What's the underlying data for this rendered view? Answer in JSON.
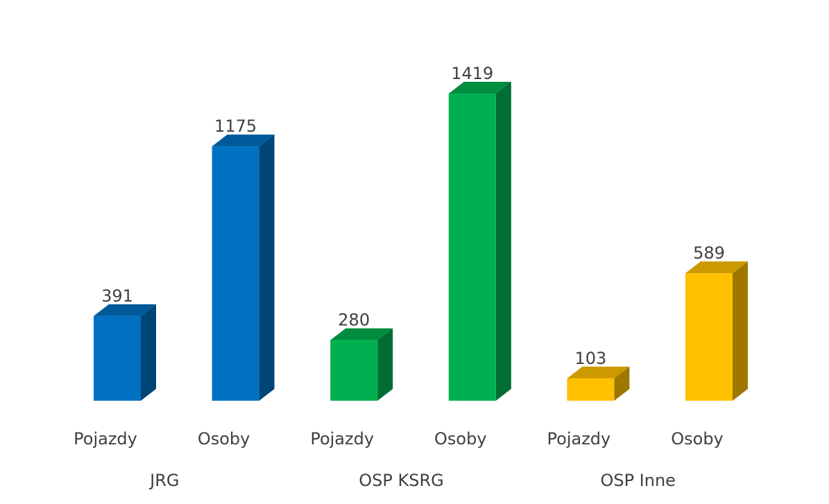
{
  "chart_data": {
    "type": "bar",
    "categories": [
      "Pojazdy",
      "Osoby",
      "Pojazdy",
      "Osoby",
      "Pojazdy",
      "Osoby"
    ],
    "groups": [
      "JRG",
      "OSP KSRG",
      "OSP Inne"
    ],
    "values": [
      391,
      1175,
      280,
      1419,
      103,
      589
    ],
    "colors": [
      "#0070c0",
      "#0070c0",
      "#00b050",
      "#00b050",
      "#ffc000",
      "#ffc000"
    ]
  }
}
